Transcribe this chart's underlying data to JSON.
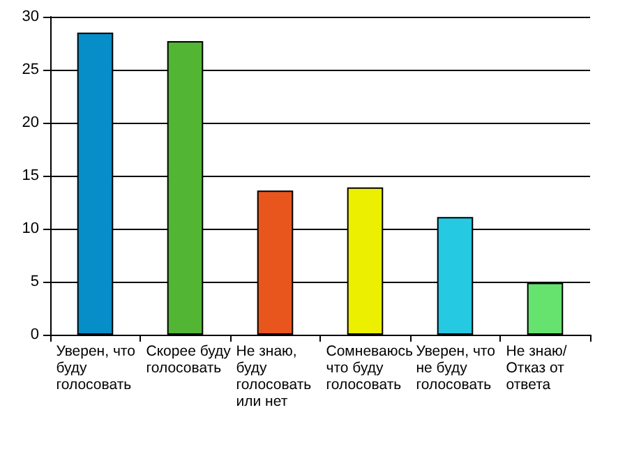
{
  "chart_data": {
    "type": "bar",
    "categories": [
      "Уверен, что буду голосовать",
      "Скорее буду голосовать",
      "Не знаю, буду голосовать или нет",
      "Сомневаюсь что буду голосовать",
      "Уверен, что не буду голосовать",
      "Не знаю/ Отказ от ответа"
    ],
    "values": [
      28.5,
      27.7,
      13.6,
      13.9,
      11.1,
      4.9
    ],
    "colors": [
      "#078dc8",
      "#53b534",
      "#e8561e",
      "#ecef00",
      "#25c9e2",
      "#66e26f"
    ],
    "ylim": [
      0,
      30
    ],
    "yticks": [
      0,
      5,
      10,
      15,
      20,
      25,
      30
    ],
    "grid": "y"
  }
}
